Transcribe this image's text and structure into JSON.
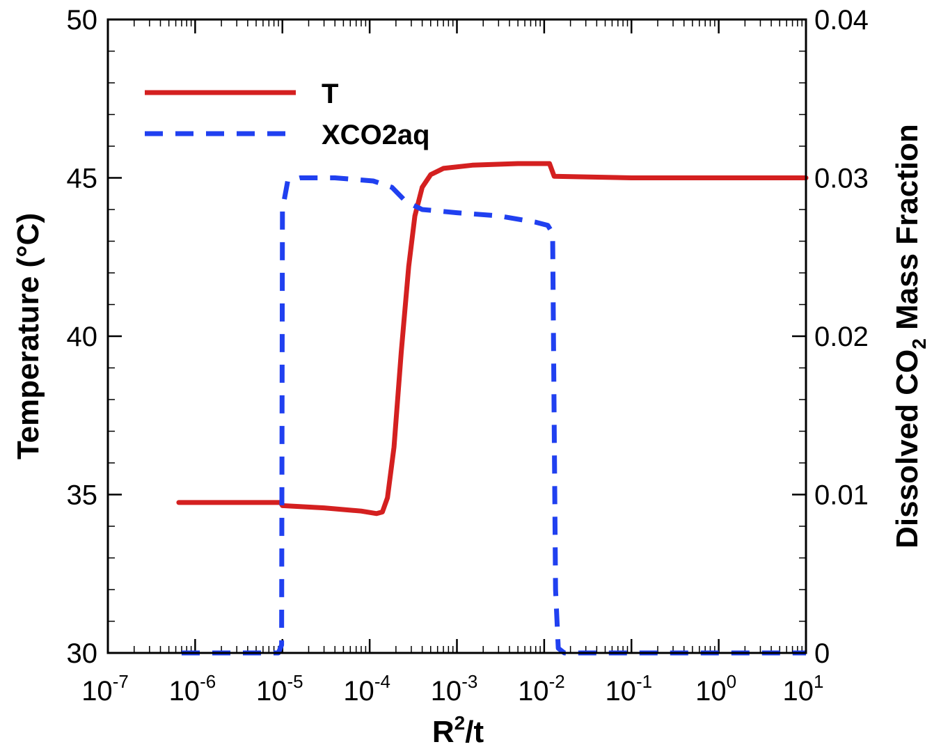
{
  "chart_data": {
    "type": "line",
    "xscale": "log",
    "xlim": [
      1e-07,
      10
    ],
    "x_ticks": [
      {
        "value": 1e-07,
        "base": "10",
        "exp": "-7"
      },
      {
        "value": 1e-06,
        "base": "10",
        "exp": "-6"
      },
      {
        "value": 1e-05,
        "base": "10",
        "exp": "-5"
      },
      {
        "value": 0.0001,
        "base": "10",
        "exp": "-4"
      },
      {
        "value": 0.001,
        "base": "10",
        "exp": "-3"
      },
      {
        "value": 0.01,
        "base": "10",
        "exp": "-2"
      },
      {
        "value": 0.1,
        "base": "10",
        "exp": "-1"
      },
      {
        "value": 1,
        "base": "10",
        "exp": "0"
      },
      {
        "value": 10,
        "base": "10",
        "exp": "1"
      }
    ],
    "xlabel": {
      "main": "R",
      "sup": "2",
      "rest": "/t"
    },
    "ylim_left": [
      30,
      50
    ],
    "yticks_left": [
      "30",
      "35",
      "40",
      "45",
      "50"
    ],
    "ylabel_left": "Temperature (°C)",
    "ylim_right": [
      0,
      0.04
    ],
    "yticks_right": [
      "0",
      "0.01",
      "0.02",
      "0.03",
      "0.04"
    ],
    "ylabel_right": {
      "pre": "Dissolved CO",
      "sub": "2",
      "post": " Mass Fraction"
    },
    "legend_position": "top-left",
    "grid": false,
    "series": [
      {
        "name": "T",
        "axis": "left",
        "color": "#d42020",
        "style": "solid",
        "points": [
          [
            6.5e-07,
            34.75
          ],
          [
            9.5e-06,
            34.75
          ],
          [
            1e-05,
            34.65
          ],
          [
            3e-05,
            34.58
          ],
          [
            8e-05,
            34.48
          ],
          [
            0.00012,
            34.4
          ],
          [
            0.00014,
            34.45
          ],
          [
            0.00016,
            34.9
          ],
          [
            0.00019,
            36.5
          ],
          [
            0.00023,
            39.5
          ],
          [
            0.00028,
            42.2
          ],
          [
            0.00033,
            43.8
          ],
          [
            0.0004,
            44.7
          ],
          [
            0.0005,
            45.1
          ],
          [
            0.0007,
            45.3
          ],
          [
            0.0015,
            45.4
          ],
          [
            0.005,
            45.45
          ],
          [
            0.0115,
            45.45
          ],
          [
            0.013,
            45.05
          ],
          [
            0.1,
            45.0
          ],
          [
            10,
            45.0
          ]
        ]
      },
      {
        "name": "XCO2aq",
        "axis": "right",
        "color": "#2040f0",
        "style": "dashed",
        "points": [
          [
            7e-07,
            0
          ],
          [
            9e-06,
            0
          ],
          [
            9.8e-06,
            0.0005
          ],
          [
            1e-05,
            0.028
          ],
          [
            1.15e-05,
            0.0298
          ],
          [
            1.6e-05,
            0.03
          ],
          [
            4e-05,
            0.03
          ],
          [
            0.00011,
            0.0298
          ],
          [
            0.00018,
            0.0294
          ],
          [
            0.00026,
            0.0285
          ],
          [
            0.0004,
            0.028
          ],
          [
            0.001,
            0.0278
          ],
          [
            0.003,
            0.0276
          ],
          [
            0.008,
            0.0272
          ],
          [
            0.011,
            0.027
          ],
          [
            0.0125,
            0.0265
          ],
          [
            0.0135,
            0.004
          ],
          [
            0.0145,
            0.0003
          ],
          [
            0.017,
            0
          ],
          [
            10,
            0
          ]
        ]
      }
    ]
  }
}
